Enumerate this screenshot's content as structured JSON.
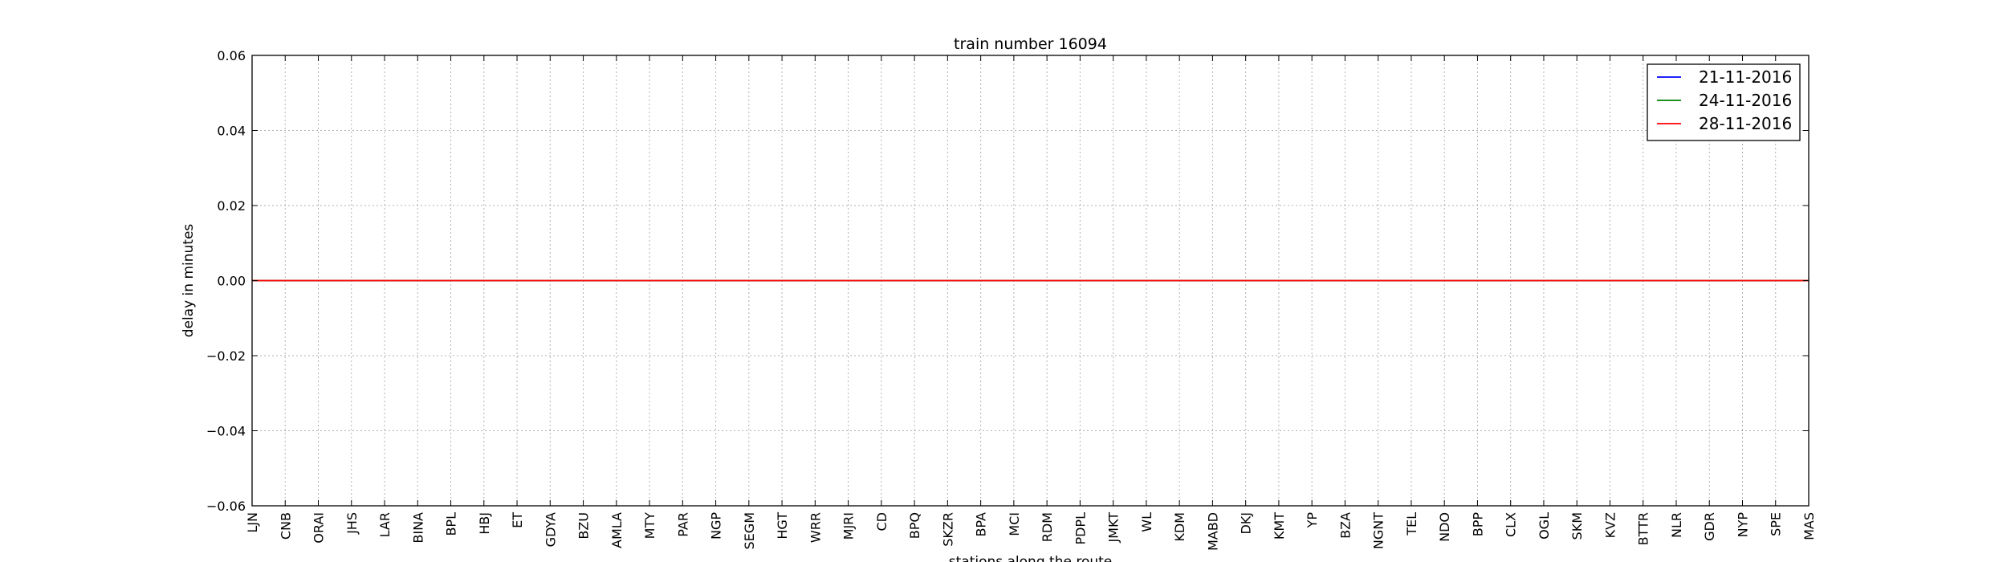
{
  "chart_data": {
    "type": "line",
    "title": "train number 16094",
    "xlabel": "stations along the route",
    "ylabel": "delay in minutes",
    "categories": [
      "LJN",
      "CNB",
      "ORAI",
      "JHS",
      "LAR",
      "BINA",
      "BPL",
      "HBJ",
      "ET",
      "GDYA",
      "BZU",
      "AMLA",
      "MTY",
      "PAR",
      "NGP",
      "SEGM",
      "HGT",
      "WRR",
      "MJRI",
      "CD",
      "BPQ",
      "SKZR",
      "BPA",
      "MCI",
      "RDM",
      "PDPL",
      "JMKT",
      "WL",
      "KDM",
      "MABD",
      "DKJ",
      "KMT",
      "YP",
      "BZA",
      "NGNT",
      "TEL",
      "NDO",
      "BPP",
      "CLX",
      "OGL",
      "SKM",
      "KVZ",
      "BTTR",
      "NLR",
      "GDR",
      "NYP",
      "SPE",
      "MAS"
    ],
    "ylim": [
      -0.06,
      0.06
    ],
    "yticks": [
      "0.06",
      "0.04",
      "0.02",
      "0.00",
      "−0.02",
      "−0.04",
      "−0.06"
    ],
    "ytick_values": [
      0.06,
      0.04,
      0.02,
      0.0,
      -0.02,
      -0.04,
      -0.06
    ],
    "grid": true,
    "legend_position": "top-right",
    "series": [
      {
        "name": "21-11-2016",
        "color": "#0000ff",
        "values": [
          0,
          0,
          0,
          0,
          0,
          0,
          0,
          0,
          0,
          0,
          0,
          0,
          0,
          0,
          0,
          0,
          0,
          0,
          0,
          0,
          0,
          0,
          0,
          0,
          0,
          0,
          0,
          0,
          0,
          0,
          0,
          0,
          0,
          0,
          0,
          0,
          0,
          0,
          0,
          0,
          0,
          0,
          0,
          0,
          0,
          0,
          0,
          0
        ]
      },
      {
        "name": "24-11-2016",
        "color": "#008000",
        "values": [
          0,
          0,
          0,
          0,
          0,
          0,
          0,
          0,
          0,
          0,
          0,
          0,
          0,
          0,
          0,
          0,
          0,
          0,
          0,
          0,
          0,
          0,
          0,
          0,
          0,
          0,
          0,
          0,
          0,
          0,
          0,
          0,
          0,
          0,
          0,
          0,
          0,
          0,
          0,
          0,
          0,
          0,
          0,
          0,
          0,
          0,
          0,
          0
        ]
      },
      {
        "name": "28-11-2016",
        "color": "#ff0000",
        "values": [
          0,
          0,
          0,
          0,
          0,
          0,
          0,
          0,
          0,
          0,
          0,
          0,
          0,
          0,
          0,
          0,
          0,
          0,
          0,
          0,
          0,
          0,
          0,
          0,
          0,
          0,
          0,
          0,
          0,
          0,
          0,
          0,
          0,
          0,
          0,
          0,
          0,
          0,
          0,
          0,
          0,
          0,
          0,
          0,
          0,
          0,
          0,
          0
        ]
      }
    ]
  }
}
